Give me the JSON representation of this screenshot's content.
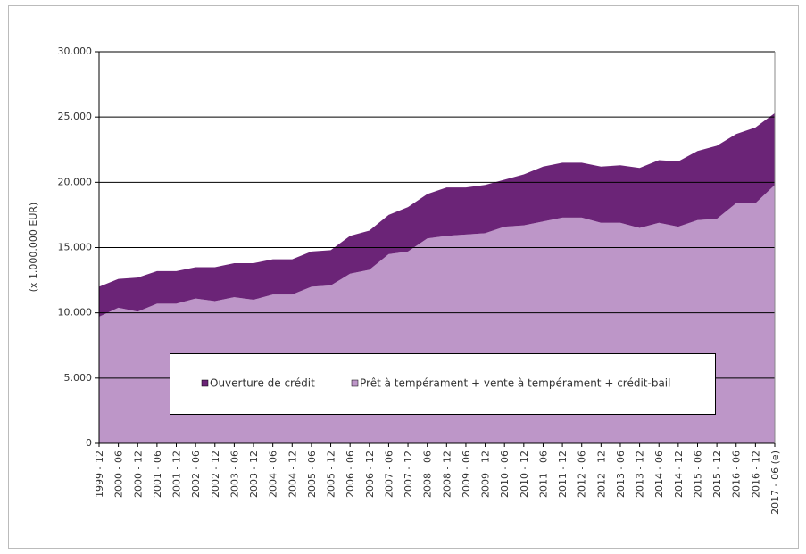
{
  "chart_data": {
    "type": "area",
    "stacked": true,
    "y_label": "(x 1.000.000 EUR)",
    "categories": [
      "1999 - 12",
      "2000 - 06",
      "2000 - 12",
      "2001 - 06",
      "2001 - 12",
      "2002 - 06",
      "2002 - 12",
      "2003 - 06",
      "2003 - 12",
      "2004 - 06",
      "2004 - 12",
      "2005 - 06",
      "2005 - 12",
      "2006 - 06",
      "2006 - 12",
      "2007 - 06",
      "2007 - 12",
      "2008 - 06",
      "2008 - 12",
      "2009 - 06",
      "2009 - 12",
      "2010 - 06",
      "2010 - 12",
      "2011 - 06",
      "2011 - 12",
      "2012 - 06",
      "2012 - 12",
      "2013 - 06",
      "2013 - 12",
      "2014 - 06",
      "2014 - 12",
      "2015 - 06",
      "2015 - 12",
      "2016 - 06",
      "2016 - 12",
      "2017 - 06 (e)"
    ],
    "series": [
      {
        "name": "Ouverture de crédit",
        "color": "#6b2477",
        "values": [
          2300,
          2200,
          2600,
          2500,
          2500,
          2400,
          2600,
          2600,
          2800,
          2700,
          2700,
          2700,
          2700,
          2900,
          3000,
          3000,
          3400,
          3400,
          3700,
          3600,
          3700,
          3600,
          3900,
          4200,
          4200,
          4200,
          4300,
          4400,
          4600,
          4800,
          5000,
          5300,
          5600,
          5300,
          5800,
          5500
        ]
      },
      {
        "name": "Prêt à tempérament + vente à tempérament + crédit-bail",
        "color": "#bd96c8",
        "values": [
          9700,
          10400,
          10100,
          10700,
          10700,
          11100,
          10900,
          11200,
          11000,
          11400,
          11400,
          12000,
          12100,
          13000,
          13300,
          14500,
          14700,
          15700,
          15900,
          16000,
          16100,
          16600,
          16700,
          17000,
          17300,
          17300,
          16900,
          16900,
          16500,
          16900,
          16600,
          17100,
          17200,
          18400,
          18400,
          19800
        ]
      }
    ],
    "ylim": [
      0,
      30000
    ],
    "yticks": [
      0,
      {
        "value": 5000,
        "label": "5.000"
      },
      {
        "value": 10000,
        "label": "10.000"
      },
      {
        "value": 15000,
        "label": "15.000"
      },
      {
        "value": 20000,
        "label": "20.000"
      },
      {
        "value": 25000,
        "label": "25.000"
      },
      {
        "value": 30000,
        "label": "30.000"
      }
    ],
    "grid": true
  }
}
